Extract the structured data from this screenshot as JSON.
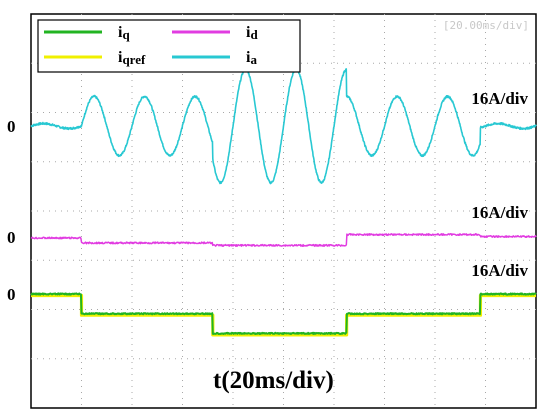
{
  "chart_data": {
    "type": "line",
    "title": "",
    "xlabel": "t(20ms/div)",
    "ylabel": "",
    "corner_label": "[20.00ms/div]",
    "grid": true,
    "grid_divisions": {
      "x": 10,
      "y": 8
    },
    "legend": {
      "placement": "top-left",
      "entries": [
        {
          "name": "i",
          "sub": "q",
          "color": "#22b422"
        },
        {
          "name": "i",
          "sub": "d",
          "color": "#e13ce1"
        },
        {
          "name": "i",
          "sub": "qref",
          "color": "#f0f000"
        },
        {
          "name": "i",
          "sub": "a",
          "color": "#28c8d2"
        }
      ]
    },
    "zero_label": "0",
    "x_range": [
      0,
      200
    ],
    "channels": [
      {
        "name": "ia",
        "color": "#28c8d2",
        "scale_label": "16A/div",
        "frequency_hz": 50,
        "amplitude_divs": [
          {
            "t_start": 0,
            "t_end": 20,
            "amp": 0.05
          },
          {
            "t_start": 20,
            "t_end": 72,
            "amp": 0.6
          },
          {
            "t_start": 72,
            "t_end": 125,
            "amp": 1.15
          },
          {
            "t_start": 125,
            "t_end": 178,
            "amp": 0.6
          },
          {
            "t_start": 178,
            "t_end": 200,
            "amp": 0.05
          }
        ]
      },
      {
        "name": "id",
        "color": "#e13ce1",
        "scale_label": "16A/div",
        "steps_divs": [
          {
            "t_start": 0,
            "t_end": 20,
            "level": 0.0
          },
          {
            "t_start": 20,
            "t_end": 72,
            "level": -0.1
          },
          {
            "t_start": 72,
            "t_end": 125,
            "level": -0.15
          },
          {
            "t_start": 125,
            "t_end": 178,
            "level": 0.07
          },
          {
            "t_start": 178,
            "t_end": 200,
            "level": 0.03
          }
        ]
      },
      {
        "name": "iq",
        "color": "#22b422",
        "reference": "iqref",
        "reference_color": "#f0f000",
        "scale_label": "16A/div",
        "steps_divs": [
          {
            "t_start": 0,
            "t_end": 20,
            "level": 0.0
          },
          {
            "t_start": 20,
            "t_end": 72,
            "level": -0.4
          },
          {
            "t_start": 72,
            "t_end": 125,
            "level": -0.8
          },
          {
            "t_start": 125,
            "t_end": 178,
            "level": -0.4
          },
          {
            "t_start": 178,
            "t_end": 200,
            "level": 0.0
          }
        ]
      }
    ]
  }
}
